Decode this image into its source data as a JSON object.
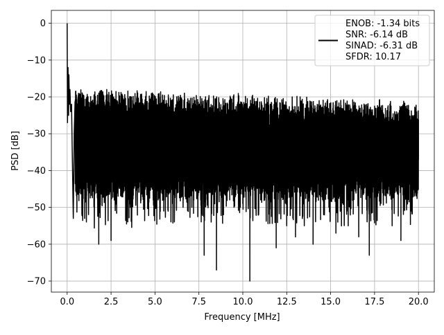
{
  "chart_data": {
    "type": "line",
    "title": "",
    "xlabel": "Frequency [MHz]",
    "ylabel": "PSD [dB]",
    "xlim": [
      -0.9,
      20.9
    ],
    "ylim": [
      -73,
      3.5
    ],
    "xticks": [
      0.0,
      2.5,
      5.0,
      7.5,
      10.0,
      12.5,
      15.0,
      17.5,
      20.0
    ],
    "xtick_labels": [
      "0.0",
      "2.5",
      "5.0",
      "7.5",
      "10.0",
      "12.5",
      "15.0",
      "17.5",
      "20.0"
    ],
    "yticks": [
      0,
      -10,
      -20,
      -30,
      -40,
      -50,
      -60,
      -70
    ],
    "ytick_labels": [
      "0",
      "−10",
      "−20",
      "−30",
      "−40",
      "−50",
      "−60",
      "−70"
    ],
    "grid": true,
    "legend_position": "top-right",
    "legend_lines": [
      "ENOB: -1.34 bits",
      "SNR: -6.14 dB",
      "SINAD: -6.31 dB",
      "SFDR: 10.17"
    ],
    "series": [
      {
        "color": "#000000",
        "description_of_noise": "broadband noise floor between about -25 dB and -45 dB across 0-20 MHz",
        "points": [
          [
            0.0,
            0.0
          ],
          [
            0.02,
            -27
          ],
          [
            0.05,
            -12
          ],
          [
            0.08,
            -25
          ],
          [
            0.1,
            -14
          ],
          [
            0.13,
            -22
          ],
          [
            0.16,
            -18
          ],
          [
            0.2,
            -24
          ],
          [
            0.25,
            -22
          ],
          [
            0.3,
            -38
          ],
          [
            0.35,
            -53
          ],
          [
            0.4,
            -30
          ],
          [
            0.5,
            -44
          ],
          [
            0.6,
            -26
          ],
          [
            0.7,
            -46
          ],
          [
            0.8,
            -28
          ],
          [
            1.0,
            -53
          ],
          [
            1.1,
            -28
          ],
          [
            1.3,
            -44
          ],
          [
            1.5,
            -29
          ],
          [
            1.8,
            -60
          ],
          [
            2.0,
            -27
          ],
          [
            2.2,
            -47
          ],
          [
            2.4,
            -26
          ],
          [
            2.5,
            -59
          ],
          [
            2.7,
            -30
          ],
          [
            2.9,
            -47
          ],
          [
            3.2,
            -28
          ],
          [
            3.6,
            -50
          ],
          [
            3.8,
            -29
          ],
          [
            4.0,
            -45
          ],
          [
            4.3,
            -27
          ],
          [
            4.5,
            -44
          ],
          [
            4.8,
            -28
          ],
          [
            4.9,
            -48
          ],
          [
            5.2,
            -27
          ],
          [
            5.5,
            -51
          ],
          [
            5.7,
            -28
          ],
          [
            6.0,
            -49
          ],
          [
            6.3,
            -29
          ],
          [
            6.6,
            -50
          ],
          [
            6.8,
            -27
          ],
          [
            7.1,
            -50
          ],
          [
            7.4,
            -29
          ],
          [
            7.6,
            -48
          ],
          [
            7.8,
            -63
          ],
          [
            8.0,
            -30
          ],
          [
            8.2,
            -54
          ],
          [
            8.5,
            -67
          ],
          [
            8.7,
            -28
          ],
          [
            8.9,
            -52
          ],
          [
            9.2,
            -30
          ],
          [
            9.5,
            -50
          ],
          [
            9.7,
            -28
          ],
          [
            10.0,
            -49
          ],
          [
            10.2,
            -30
          ],
          [
            10.4,
            -70
          ],
          [
            10.6,
            -29
          ],
          [
            10.9,
            -52
          ],
          [
            11.2,
            -30
          ],
          [
            11.5,
            -48
          ],
          [
            11.8,
            -30
          ],
          [
            11.9,
            -61
          ],
          [
            12.2,
            -29
          ],
          [
            12.5,
            -55
          ],
          [
            12.8,
            -30
          ],
          [
            13.0,
            -58
          ],
          [
            13.2,
            -30
          ],
          [
            13.5,
            -55
          ],
          [
            13.8,
            -31
          ],
          [
            14.0,
            -60
          ],
          [
            14.3,
            -29
          ],
          [
            14.6,
            -52
          ],
          [
            15.0,
            -30
          ],
          [
            15.3,
            -57
          ],
          [
            15.6,
            -29
          ],
          [
            16.0,
            -55
          ],
          [
            16.3,
            -31
          ],
          [
            16.6,
            -58
          ],
          [
            16.9,
            -30
          ],
          [
            17.2,
            -63
          ],
          [
            17.5,
            -29
          ],
          [
            17.8,
            -47
          ],
          [
            18.1,
            -30
          ],
          [
            18.5,
            -55
          ],
          [
            18.8,
            -31
          ],
          [
            19.0,
            -59
          ],
          [
            19.3,
            -32
          ],
          [
            19.6,
            -51
          ],
          [
            20.0,
            -37
          ]
        ]
      }
    ]
  }
}
